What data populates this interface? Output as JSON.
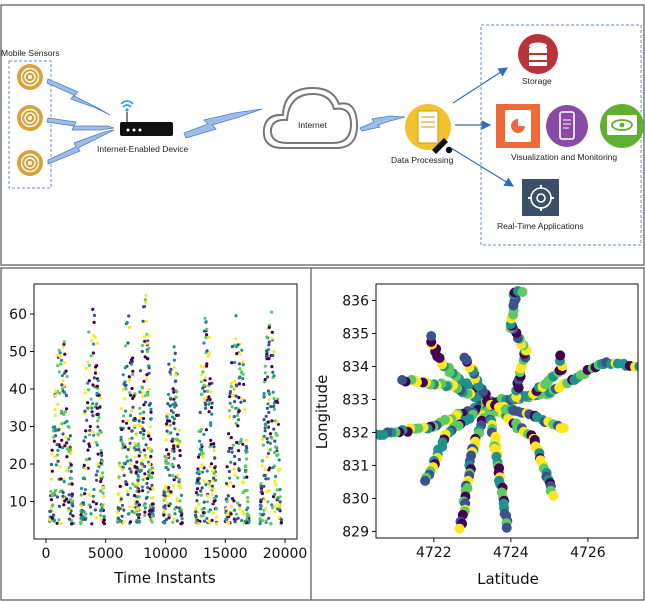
{
  "diagram": {
    "mobile_sensors": "Mobile Sensors",
    "device": "Internet-Enabled Device",
    "internet": "Internet",
    "processing": "Data Processing",
    "storage": "Storage",
    "visualization": "Visualization and Monitoring",
    "realtime": "Real-Time Applications",
    "colors": {
      "sensor": "#d8a23a",
      "storage": "#b8343a",
      "orange": "#ee6a3a",
      "purple": "#8a4aa8",
      "green": "#5fb030",
      "navy": "#3a5068",
      "arrow": "#2f6fb8",
      "bolt": "#8fb4e0"
    }
  },
  "chart_data": [
    {
      "type": "scatter",
      "title": "",
      "xlabel": "Time Instants",
      "ylabel": "",
      "xlim": [
        -1000,
        21000
      ],
      "ylim": [
        0,
        68
      ],
      "xticks": [
        "0",
        "5000",
        "10000",
        "15000",
        "20000"
      ],
      "xtick_values": [
        0,
        5000,
        10000,
        15000,
        20000
      ],
      "yticks": [
        "10",
        "20",
        "30",
        "40",
        "50",
        "60"
      ],
      "ytick_values": [
        10,
        20,
        30,
        40,
        50,
        60
      ],
      "cycles": [
        {
          "center": 1300,
          "half_width": 1000,
          "peak": 57
        },
        {
          "center": 3900,
          "half_width": 1000,
          "peak": 63
        },
        {
          "center": 6900,
          "half_width": 900,
          "peak": 60
        },
        {
          "center": 8300,
          "half_width": 700,
          "peak": 67
        },
        {
          "center": 10600,
          "half_width": 800,
          "peak": 55
        },
        {
          "center": 13400,
          "half_width": 900,
          "peak": 60
        },
        {
          "center": 16000,
          "half_width": 1000,
          "peak": 61
        },
        {
          "center": 18800,
          "half_width": 900,
          "peak": 61
        }
      ],
      "grid": false
    },
    {
      "type": "scatter",
      "title": "",
      "xlabel": "Latitude",
      "ylabel": "Longitude",
      "xlim": [
        4720.5,
        4727.3
      ],
      "ylim": [
        828.8,
        836.5
      ],
      "xticks": [
        "4722",
        "4724",
        "4726"
      ],
      "xtick_values": [
        4722,
        4724,
        4726
      ],
      "yticks": [
        "829",
        "830",
        "831",
        "832",
        "833",
        "834",
        "835",
        "836"
      ],
      "ytick_values": [
        829,
        830,
        831,
        832,
        833,
        834,
        835,
        836
      ],
      "center": [
        4723.4,
        832.9
      ],
      "routes": [
        [
          [
            4723.4,
            832.9
          ],
          [
            4722.2,
            834.1
          ],
          [
            4721.9,
            834.9
          ]
        ],
        [
          [
            4723.4,
            832.9
          ],
          [
            4722.5,
            833.4
          ],
          [
            4721.2,
            833.6
          ]
        ],
        [
          [
            4723.4,
            832.9
          ],
          [
            4722.0,
            832.2
          ],
          [
            4720.5,
            831.9
          ]
        ],
        [
          [
            4723.4,
            832.9
          ],
          [
            4722.3,
            831.9
          ],
          [
            4721.8,
            830.5
          ]
        ],
        [
          [
            4723.4,
            832.9
          ],
          [
            4723.0,
            831.5
          ],
          [
            4722.7,
            829.1
          ]
        ],
        [
          [
            4723.4,
            832.9
          ],
          [
            4723.6,
            831.6
          ],
          [
            4723.9,
            829.1
          ]
        ],
        [
          [
            4723.4,
            832.9
          ],
          [
            4724.6,
            831.8
          ],
          [
            4725.1,
            830.1
          ]
        ],
        [
          [
            4723.4,
            832.9
          ],
          [
            4725.0,
            833.2
          ],
          [
            4726.4,
            834.1
          ],
          [
            4727.3,
            834.0
          ]
        ],
        [
          [
            4723.4,
            832.9
          ],
          [
            4724.5,
            833.1
          ],
          [
            4725.3,
            833.9
          ],
          [
            4725.3,
            834.3
          ]
        ],
        [
          [
            4723.4,
            832.9
          ],
          [
            4723.0,
            833.9
          ],
          [
            4722.8,
            834.3
          ]
        ],
        [
          [
            4724.1,
            833.0
          ],
          [
            4724.4,
            834.5
          ],
          [
            4724.0,
            835.2
          ],
          [
            4724.1,
            836.2
          ],
          [
            4724.3,
            836.3
          ]
        ],
        [
          [
            4723.4,
            832.9
          ],
          [
            4724.6,
            832.5
          ],
          [
            4725.4,
            832.1
          ]
        ]
      ],
      "grid": false
    }
  ]
}
